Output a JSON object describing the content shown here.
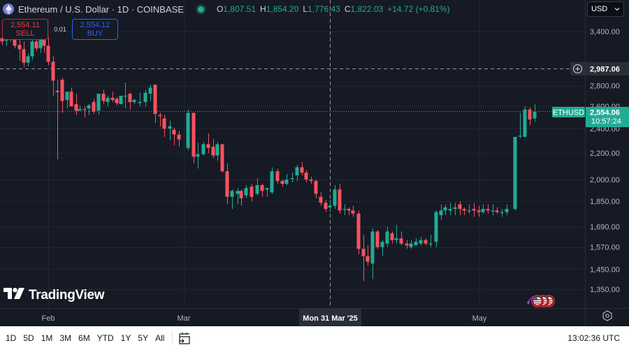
{
  "header": {
    "title": "Ethereum / U.S. Dollar · 1D · COINBASE",
    "logo_icon": "ethereum-icon",
    "status_icon": "market-open-dot",
    "ohlc": {
      "o_label": "O",
      "o_value": "1,807.51",
      "h_label": "H",
      "h_value": "1,854.20",
      "l_label": "L",
      "l_value": "1,776.43",
      "c_label": "C",
      "c_value": "1,822.03",
      "change": "+14.72 (+0.81%)"
    }
  },
  "trade": {
    "sell_price": "2,554.11",
    "sell_label": "SELL",
    "spread": "0.01",
    "buy_price": "2,554.12",
    "buy_label": "BUY"
  },
  "currency_select": {
    "value": "USD",
    "icon": "chevron-down-icon"
  },
  "price_axis": {
    "ticks": [
      "3,400.00",
      "2,800.00",
      "2,600.00",
      "2,400.00",
      "2,200.00",
      "2,000.00",
      "1,850.00",
      "1,690.00",
      "1,570.00",
      "1,450.00",
      "1,350.00"
    ],
    "crosshair_price": "2,987.06",
    "last_price": "2,554.06",
    "countdown": "10:57:24",
    "symbol_tag": "ETHUSD"
  },
  "time_axis": {
    "labels": [
      "Feb",
      "Mar",
      "May"
    ],
    "crosshair_date": "Mon 31 Mar '25",
    "settings_icon": "settings-hex-icon"
  },
  "watermark": {
    "text": "TradingView",
    "icon": "tradingview-logo-icon"
  },
  "events": {
    "icons": [
      "us-flag-event-icon",
      "us-flag-event-icon",
      "us-flag-event-icon"
    ]
  },
  "bottom_bar": {
    "ranges": [
      "1D",
      "5D",
      "1M",
      "3M",
      "6M",
      "YTD",
      "1Y",
      "5Y",
      "All"
    ],
    "goto_date_icon": "calendar-goto-icon",
    "clock": "13:02:36 UTC"
  },
  "colors": {
    "background": "#161a25",
    "up": "#22ab94",
    "down": "#f23645",
    "down_candle": "#f7525f",
    "grid": "#232632",
    "axis_text": "#b2b5be",
    "sell": "#f23645",
    "buy": "#2962ff"
  },
  "chart_data": {
    "type": "candlestick",
    "title": "Ethereum / U.S. Dollar · 1D · COINBASE",
    "symbol": "ETHUSD",
    "interval": "1D",
    "xlabel": "",
    "ylabel": "USD",
    "y_scale": "log",
    "ylim": [
      1290,
      3600
    ],
    "x_tick_labels": [
      "Feb",
      "Mar",
      "May"
    ],
    "y_tick_labels": [
      3400,
      2800,
      2600,
      2400,
      2200,
      2000,
      1850,
      1690,
      1570,
      1450,
      1350
    ],
    "last_price": 2554.06,
    "crosshair": {
      "date": "Mon 31 Mar '25",
      "price": 2987.06,
      "ohlc": [
        1807.51,
        1854.2,
        1776.43,
        1822.03
      ]
    },
    "candles": [
      [
        3,
        3320,
        3360,
        3240,
        3280
      ],
      [
        9,
        3290,
        3420,
        3230,
        3370
      ],
      [
        15,
        3370,
        3420,
        3280,
        3300
      ],
      [
        21,
        3300,
        3330,
        3200,
        3230
      ],
      [
        28,
        3240,
        3320,
        3060,
        3190
      ],
      [
        34,
        3190,
        3280,
        2990,
        3040
      ],
      [
        40,
        3040,
        3140,
        3000,
        3110
      ],
      [
        46,
        3110,
        3330,
        3070,
        3280
      ],
      [
        52,
        3280,
        3380,
        3170,
        3200
      ],
      [
        58,
        3200,
        3390,
        3150,
        3350
      ],
      [
        63,
        3350,
        3360,
        3150,
        3230
      ],
      [
        69,
        3230,
        3330,
        3010,
        3050
      ],
      [
        76,
        3050,
        3110,
        2700,
        2850
      ],
      [
        82,
        2750,
        2860,
        2150,
        2735
      ],
      [
        89,
        2860,
        2880,
        2540,
        2650
      ],
      [
        96,
        2660,
        2720,
        2580,
        2740
      ],
      [
        102,
        2740,
        2780,
        2600,
        2600
      ],
      [
        109,
        2620,
        2720,
        2520,
        2560
      ],
      [
        114,
        2560,
        2610,
        2560,
        2575
      ],
      [
        121,
        2575,
        2600,
        2500,
        2570
      ],
      [
        127,
        2580,
        2620,
        2520,
        2610
      ],
      [
        134,
        2640,
        2670,
        2530,
        2550
      ],
      [
        141,
        2560,
        2720,
        2520,
        2720
      ],
      [
        148,
        2720,
        2760,
        2620,
        2650
      ],
      [
        154,
        2640,
        2700,
        2600,
        2680
      ],
      [
        161,
        2680,
        2740,
        2640,
        2660
      ],
      [
        167,
        2670,
        2690,
        2610,
        2630
      ],
      [
        173,
        2620,
        2700,
        2620,
        2700
      ],
      [
        179,
        2700,
        2830,
        2580,
        2700
      ],
      [
        186,
        2720,
        2730,
        2570,
        2640
      ],
      [
        192,
        2640,
        2670,
        2620,
        2660
      ],
      [
        200,
        2630,
        2730,
        2600,
        2640
      ],
      [
        208,
        2640,
        2760,
        2600,
        2730
      ],
      [
        215,
        2720,
        2810,
        2650,
        2780
      ],
      [
        222,
        2810,
        2810,
        2450,
        2530
      ],
      [
        229,
        2520,
        2540,
        2420,
        2510
      ],
      [
        235,
        2490,
        2520,
        2330,
        2400
      ],
      [
        243,
        2400,
        2470,
        2300,
        2420
      ],
      [
        249,
        2390,
        2410,
        2260,
        2350
      ],
      [
        256,
        2350,
        2380,
        2250,
        2310
      ],
      [
        269,
        2240,
        2570,
        2220,
        2540
      ],
      [
        277,
        2540,
        2540,
        2120,
        2170
      ],
      [
        283,
        2170,
        2280,
        2080,
        2190
      ],
      [
        291,
        2190,
        2290,
        2180,
        2270
      ],
      [
        298,
        2270,
        2360,
        2200,
        2240
      ],
      [
        305,
        2250,
        2310,
        2160,
        2180
      ],
      [
        311,
        2180,
        2290,
        2140,
        2270
      ],
      [
        318,
        2270,
        2270,
        2050,
        2060
      ],
      [
        325,
        2060,
        2120,
        1830,
        1880
      ],
      [
        332,
        1880,
        1930,
        1800,
        1920
      ],
      [
        340,
        1900,
        1940,
        1830,
        1920
      ],
      [
        345,
        1920,
        1930,
        1820,
        1870
      ],
      [
        352,
        1890,
        1960,
        1870,
        1940
      ],
      [
        360,
        1950,
        1970,
        1850,
        1880
      ],
      [
        368,
        1900,
        2010,
        1890,
        1960
      ],
      [
        375,
        1960,
        1970,
        1880,
        1920
      ],
      [
        382,
        1930,
        1940,
        1880,
        1940
      ],
      [
        389,
        1910,
        2090,
        1900,
        2060
      ],
      [
        397,
        2060,
        2080,
        1970,
        1990
      ],
      [
        404,
        1990,
        2000,
        1950,
        1970
      ],
      [
        410,
        1970,
        2040,
        1960,
        2000
      ],
      [
        418,
        2010,
        2050,
        1980,
        2010
      ],
      [
        425,
        2030,
        2110,
        1990,
        2090
      ],
      [
        432,
        2090,
        2130,
        2030,
        2050
      ],
      [
        438,
        2050,
        2070,
        1980,
        2000
      ],
      [
        445,
        2000,
        2020,
        1970,
        1990
      ],
      [
        452,
        1990,
        2000,
        1870,
        1900
      ],
      [
        459,
        1880,
        1910,
        1820,
        1840
      ],
      [
        466,
        1840,
        1860,
        1780,
        1800
      ],
      [
        472,
        1810,
        1860,
        1780,
        1822
      ],
      [
        479,
        1820,
        1960,
        1800,
        1930
      ],
      [
        486,
        1930,
        1970,
        1770,
        1790
      ],
      [
        493,
        1800,
        1830,
        1760,
        1800
      ],
      [
        499,
        1800,
        1810,
        1760,
        1790
      ],
      [
        505,
        1790,
        1820,
        1750,
        1770
      ],
      [
        513,
        1770,
        1790,
        1530,
        1560
      ],
      [
        520,
        1560,
        1640,
        1390,
        1520
      ],
      [
        526,
        1520,
        1580,
        1470,
        1490
      ],
      [
        533,
        1480,
        1680,
        1400,
        1660
      ],
      [
        540,
        1660,
        1670,
        1560,
        1570
      ],
      [
        547,
        1570,
        1610,
        1520,
        1600
      ],
      [
        554,
        1590,
        1690,
        1570,
        1660
      ],
      [
        561,
        1650,
        1660,
        1590,
        1610
      ],
      [
        567,
        1610,
        1700,
        1590,
        1620
      ],
      [
        574,
        1620,
        1660,
        1580,
        1590
      ],
      [
        582,
        1590,
        1610,
        1560,
        1580
      ],
      [
        588,
        1570,
        1610,
        1560,
        1590
      ],
      [
        595,
        1580,
        1620,
        1580,
        1600
      ],
      [
        602,
        1590,
        1630,
        1580,
        1610
      ],
      [
        609,
        1610,
        1620,
        1580,
        1590
      ],
      [
        616,
        1590,
        1640,
        1570,
        1590
      ],
      [
        624,
        1600,
        1790,
        1570,
        1780
      ],
      [
        631,
        1760,
        1830,
        1730,
        1790
      ],
      [
        637,
        1790,
        1830,
        1760,
        1810
      ],
      [
        644,
        1790,
        1840,
        1760,
        1800
      ],
      [
        651,
        1800,
        1840,
        1760,
        1810
      ],
      [
        658,
        1830,
        1850,
        1760,
        1800
      ],
      [
        664,
        1800,
        1810,
        1760,
        1790
      ],
      [
        671,
        1790,
        1830,
        1770,
        1790
      ],
      [
        678,
        1800,
        1840,
        1750,
        1790
      ],
      [
        685,
        1790,
        1820,
        1750,
        1780
      ],
      [
        691,
        1780,
        1830,
        1770,
        1800
      ],
      [
        698,
        1800,
        1830,
        1770,
        1790
      ],
      [
        705,
        1790,
        1830,
        1760,
        1790
      ],
      [
        711,
        1790,
        1810,
        1770,
        1780
      ],
      [
        718,
        1780,
        1800,
        1750,
        1780
      ],
      [
        725,
        1780,
        1830,
        1760,
        1800
      ],
      [
        737,
        1800,
        2330,
        1790,
        2330
      ],
      [
        744,
        2340,
        2540,
        2320,
        2340
      ],
      [
        751,
        2330,
        2600,
        2330,
        2570
      ],
      [
        758,
        2570,
        2590,
        2430,
        2480
      ],
      [
        765,
        2490,
        2620,
        2460,
        2550
      ]
    ]
  }
}
